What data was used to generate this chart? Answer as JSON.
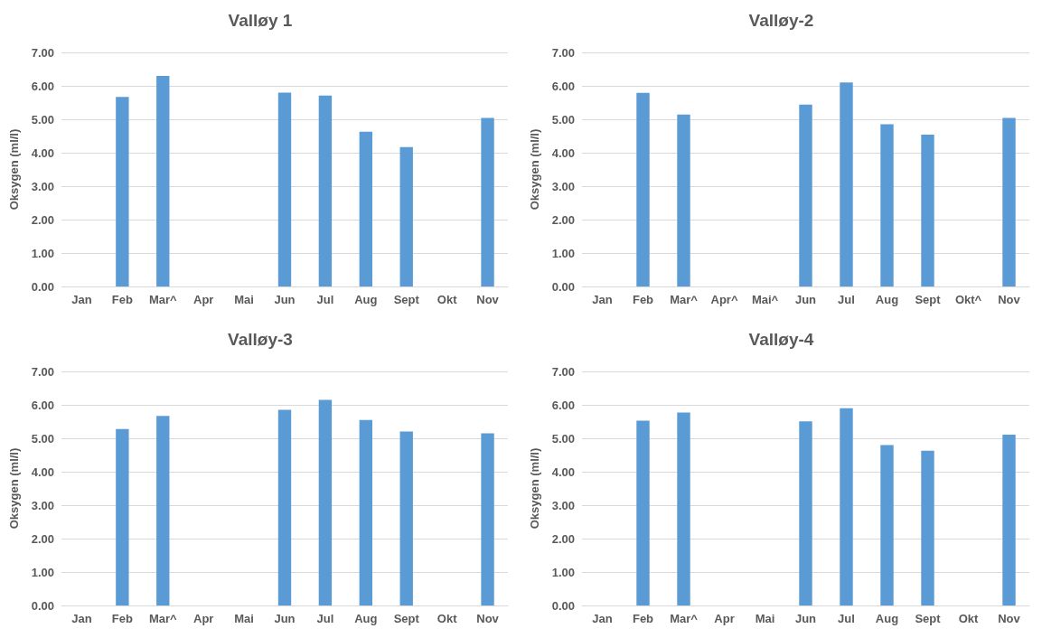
{
  "chart_data": [
    {
      "type": "bar",
      "title": "Valløy 1",
      "ylabel": "Oksygen (ml/l)",
      "categories": [
        "Jan",
        "Feb",
        "Mar^",
        "Apr",
        "Mai",
        "Jun",
        "Jul",
        "Aug",
        "Sept",
        "Okt",
        "Nov"
      ],
      "values": [
        null,
        5.67,
        6.3,
        null,
        null,
        5.8,
        5.71,
        4.63,
        4.17,
        null,
        5.04
      ],
      "color": "#5b9bd5",
      "ylim": [
        0,
        7
      ],
      "yticks": [
        {
          "value": 0,
          "label": "0.00"
        },
        {
          "value": 1,
          "label": "1.00"
        },
        {
          "value": 2,
          "label": "2.00"
        },
        {
          "value": 3,
          "label": "3.00"
        },
        {
          "value": 4,
          "label": "4.00"
        },
        {
          "value": 5,
          "label": "5.00"
        },
        {
          "value": 6,
          "label": "6.00"
        },
        {
          "value": 7,
          "label": "7.00"
        }
      ],
      "grid": "y"
    },
    {
      "type": "bar",
      "title": "Valløy-2",
      "ylabel": "Oksygen (ml/l)",
      "categories": [
        "Jan",
        "Feb",
        "Mar^",
        "Apr^",
        "Mai^",
        "Jun",
        "Jul",
        "Aug",
        "Sept",
        "Okt^",
        "Nov"
      ],
      "values": [
        null,
        5.79,
        5.14,
        null,
        null,
        5.44,
        6.1,
        4.85,
        4.54,
        null,
        5.04
      ],
      "color": "#5b9bd5",
      "ylim": [
        0,
        7
      ],
      "yticks": [
        {
          "value": 0,
          "label": "0.00"
        },
        {
          "value": 1,
          "label": "1.00"
        },
        {
          "value": 2,
          "label": "2.00"
        },
        {
          "value": 3,
          "label": "3.00"
        },
        {
          "value": 4,
          "label": "4.00"
        },
        {
          "value": 5,
          "label": "5.00"
        },
        {
          "value": 6,
          "label": "6.00"
        },
        {
          "value": 7,
          "label": "7.00"
        }
      ],
      "grid": "y"
    },
    {
      "type": "bar",
      "title": "Valløy-3",
      "ylabel": "Oksygen (ml/l)",
      "categories": [
        "Jan",
        "Feb",
        "Mar^",
        "Apr",
        "Mai",
        "Jun",
        "Jul",
        "Aug",
        "Sept",
        "Okt",
        "Nov"
      ],
      "values": [
        null,
        5.28,
        5.67,
        null,
        null,
        5.85,
        6.15,
        5.55,
        5.2,
        null,
        5.15
      ],
      "color": "#5b9bd5",
      "ylim": [
        0,
        7
      ],
      "yticks": [
        {
          "value": 0,
          "label": "0.00"
        },
        {
          "value": 1,
          "label": "1.00"
        },
        {
          "value": 2,
          "label": "2.00"
        },
        {
          "value": 3,
          "label": "3.00"
        },
        {
          "value": 4,
          "label": "4.00"
        },
        {
          "value": 5,
          "label": "5.00"
        },
        {
          "value": 6,
          "label": "6.00"
        },
        {
          "value": 7,
          "label": "7.00"
        }
      ],
      "grid": "y"
    },
    {
      "type": "bar",
      "title": "Valløy-4",
      "ylabel": "Oksygen (ml/l)",
      "categories": [
        "Jan",
        "Feb",
        "Mar^",
        "Apr",
        "Mai",
        "Jun",
        "Jul",
        "Aug",
        "Sept",
        "Okt",
        "Nov"
      ],
      "values": [
        null,
        5.53,
        5.77,
        null,
        null,
        5.51,
        5.9,
        4.8,
        4.63,
        null,
        5.11
      ],
      "color": "#5b9bd5",
      "ylim": [
        0,
        7
      ],
      "yticks": [
        {
          "value": 0,
          "label": "0.00"
        },
        {
          "value": 1,
          "label": "1.00"
        },
        {
          "value": 2,
          "label": "2.00"
        },
        {
          "value": 3,
          "label": "3.00"
        },
        {
          "value": 4,
          "label": "4.00"
        },
        {
          "value": 5,
          "label": "5.00"
        },
        {
          "value": 6,
          "label": "6.00"
        },
        {
          "value": 7,
          "label": "7.00"
        }
      ],
      "grid": "y"
    }
  ]
}
